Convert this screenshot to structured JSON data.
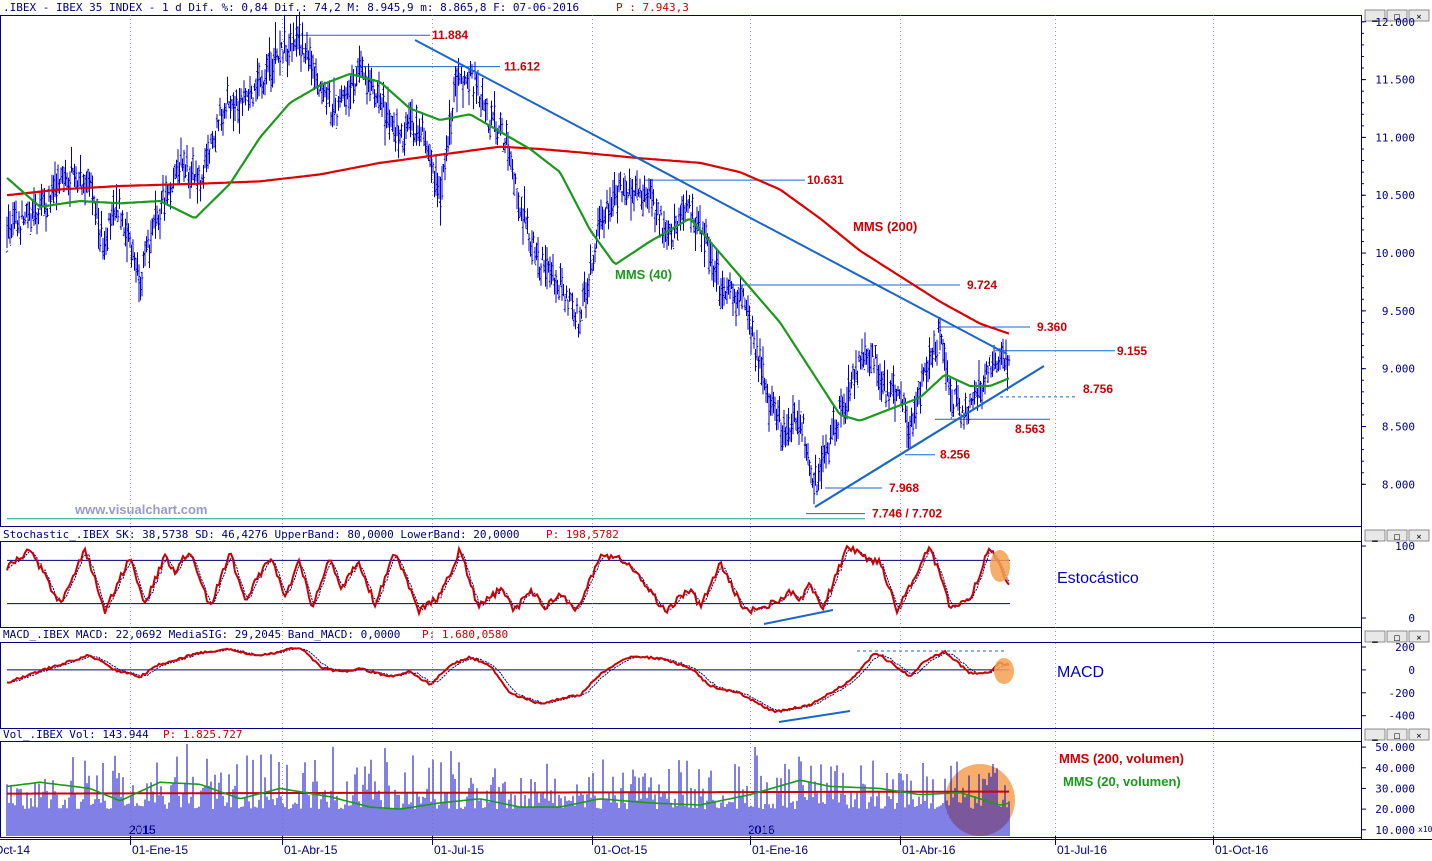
{
  "header": {
    "price_text": ".IBEX - IBEX 35 INDEX -  1 d Dif. %: 0,84 Dif.: 74,2 M: 8.945,9 m: 8.865,8 F: 07-06-2016",
    "price_extra": "P : 7.943,3"
  },
  "watermark": "www.visualchart.com",
  "colors": {
    "bars": "#0000cc",
    "mms200": "#dd0000",
    "mms40": "#1a9a1a",
    "trendline": "#1a66cc",
    "level_text": "#cc0000",
    "annotation_blue": "#0000cc",
    "header_text": "#000080",
    "highlight": "#f5a050"
  },
  "chart_data": [
    {
      "type": "line",
      "panel": "price",
      "series": [
        {
          "name": "MMS (200)",
          "values": [
            10500,
            10550,
            10580,
            10600,
            10580,
            10650,
            10700,
            10760,
            10820,
            10870,
            10870,
            10900,
            10870,
            10780,
            10700,
            10600,
            10350,
            10100,
            9800,
            9500,
            9300
          ]
        },
        {
          "name": "MMS (40)",
          "values": [
            10600,
            10400,
            10300,
            10280,
            10700,
            11200,
            11400,
            11100,
            10900,
            11000,
            10600,
            10100,
            10200,
            10300,
            9700,
            9000,
            8600,
            8650,
            8750,
            8850,
            8900
          ]
        }
      ],
      "yaxis_ticks": [
        "12.000",
        "11.500",
        "11.000",
        "10.500",
        "10.000",
        "9.500",
        "9.000",
        "8.500",
        "8.000"
      ],
      "ylim": [
        7700,
        12050
      ],
      "levels": [
        {
          "label": "11.884",
          "value": 11884
        },
        {
          "label": "11.612",
          "value": 11612
        },
        {
          "label": "10.631",
          "value": 10631
        },
        {
          "label": "9.724",
          "value": 9724
        },
        {
          "label": "9.360",
          "value": 9360
        },
        {
          "label": "9.155",
          "value": 9155
        },
        {
          "label": "8.756",
          "value": 8756
        },
        {
          "label": "8.563",
          "value": 8563
        },
        {
          "label": "8.256",
          "value": 8256
        },
        {
          "label": "7.968",
          "value": 7968
        },
        {
          "label": "7.746 / 7.702",
          "value": 7746
        }
      ],
      "annotations": {
        "mms200": "MMS (200)",
        "mms40": "MMS (40)"
      }
    },
    {
      "type": "line",
      "panel": "stochastic",
      "header": "Stochastic_.IBEX SK: 38,5738 SD: 46,4276 UpperBand: 80,0000 LowerBand: 20,0000",
      "header_extra": "P: 198,5782",
      "yaxis_ticks": [
        "100",
        "0"
      ],
      "bands": [
        80,
        20
      ],
      "ylim": [
        0,
        100
      ],
      "label": "Estocástico"
    },
    {
      "type": "line",
      "panel": "macd",
      "header": "MACD_.IBEX MACD: 22,0692 MediaSIG: 29,2045 Band_MACD: 0,0000",
      "header_extra": "P: 1.680,0580",
      "yaxis_ticks": [
        "200",
        "0",
        "-200",
        "-400"
      ],
      "ylim": [
        -420,
        200
      ],
      "label": "MACD"
    },
    {
      "type": "bar",
      "panel": "volume",
      "header": "Vol_.IBEX Vol: 143.944",
      "header_extra": "P: 1.825.727",
      "yaxis_ticks": [
        "50.000",
        "40.000",
        "30.000",
        "20.000",
        "10.000"
      ],
      "yaxis_unit": "x10",
      "ylim": [
        7000,
        51500
      ],
      "series": [
        {
          "name": "MMS (200, volumen)"
        },
        {
          "name": "MMS (20, volumen)"
        }
      ],
      "year_labels": [
        "2015",
        "2016"
      ]
    }
  ],
  "x_axis": {
    "labels": [
      "Oct-14",
      "01-Ene-15",
      "01-Abr-15",
      "01-Jul-15",
      "01-Oct-15",
      "01-Ene-16",
      "01-Abr-16",
      "01-Jul-16",
      "01-Oct-16"
    ]
  }
}
